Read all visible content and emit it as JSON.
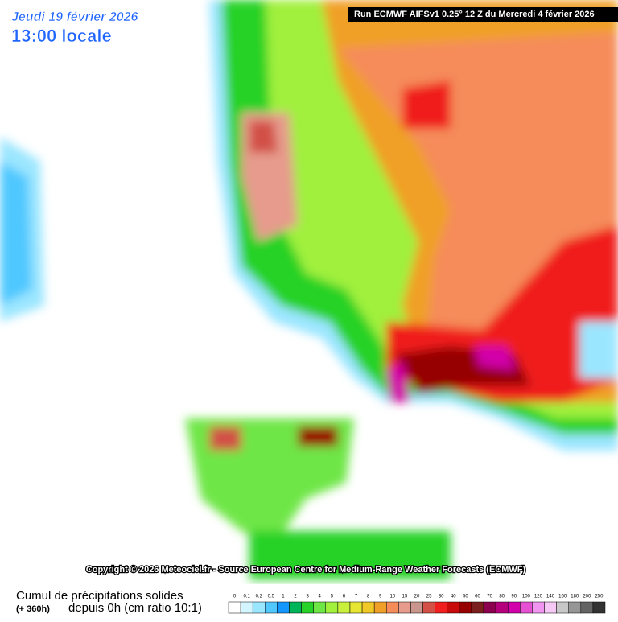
{
  "header": {
    "date": "Jeudi 19 février 2026",
    "time": "13:00 locale",
    "run": "Run ECMWF AIFSv1 0.25° 12 Z du Mercredi 4 février 2026"
  },
  "copyright": "Copyright © 2026 Meteociel.fr - Source European Centre for Medium-Range Weather Forecasts (ECMWF)",
  "legend": {
    "title": "Cumul de précipitations solides",
    "range": "(+ 360h)",
    "subtitle": "depuis 0h (cm ratio 10:1)",
    "items": [
      {
        "label": "0",
        "color": "#ffffff"
      },
      {
        "label": "0.1",
        "color": "#d2f5ff"
      },
      {
        "label": "0.2",
        "color": "#9be6ff"
      },
      {
        "label": "0.5",
        "color": "#50c8ff"
      },
      {
        "label": "1",
        "color": "#1496ff"
      },
      {
        "label": "2",
        "color": "#00b45a"
      },
      {
        "label": "3",
        "color": "#28d228"
      },
      {
        "label": "4",
        "color": "#6ee646"
      },
      {
        "label": "5",
        "color": "#a0f03c"
      },
      {
        "label": "6",
        "color": "#c8f03c"
      },
      {
        "label": "7",
        "color": "#e6e632"
      },
      {
        "label": "8",
        "color": "#f0c828"
      },
      {
        "label": "9",
        "color": "#f0a028"
      },
      {
        "label": "10",
        "color": "#f58c5a"
      },
      {
        "label": "15",
        "color": "#e69b8c"
      },
      {
        "label": "20",
        "color": "#c8968c"
      },
      {
        "label": "25",
        "color": "#d25046"
      },
      {
        "label": "30",
        "color": "#f01e1e"
      },
      {
        "label": "40",
        "color": "#c80a0a"
      },
      {
        "label": "50",
        "color": "#960000"
      },
      {
        "label": "60",
        "color": "#7a1e1e"
      },
      {
        "label": "70",
        "color": "#8c0050"
      },
      {
        "label": "80",
        "color": "#b4007d"
      },
      {
        "label": "90",
        "color": "#d200aa"
      },
      {
        "label": "100",
        "color": "#e650d2"
      },
      {
        "label": "120",
        "color": "#f096f0"
      },
      {
        "label": "140",
        "color": "#f5c8f5"
      },
      {
        "label": "160",
        "color": "#c8c8c8"
      },
      {
        "label": "180",
        "color": "#969696"
      },
      {
        "label": "200",
        "color": "#646464"
      },
      {
        "label": "250",
        "color": "#323232"
      }
    ]
  }
}
